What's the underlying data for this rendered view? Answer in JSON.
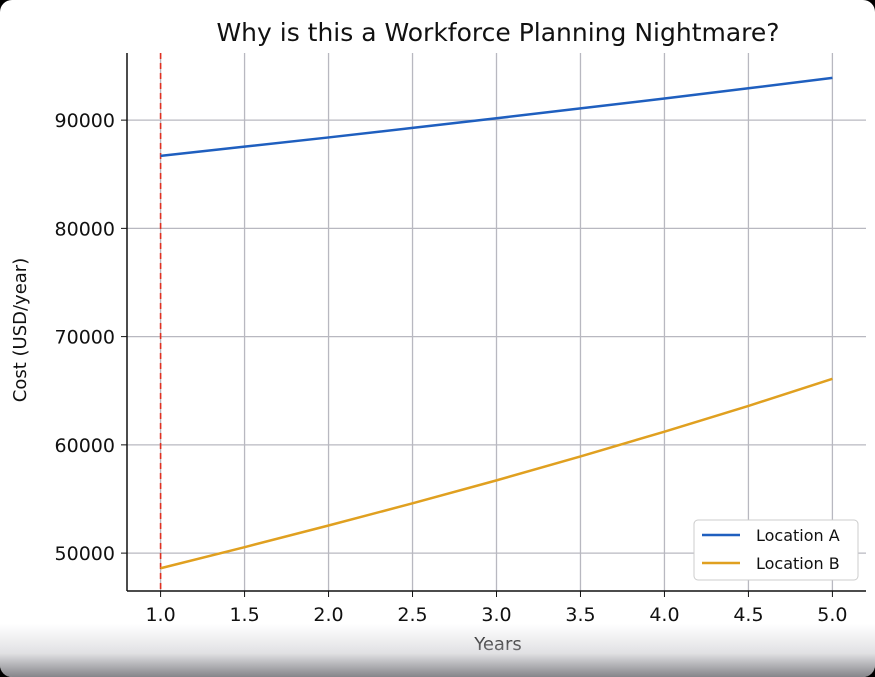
{
  "chart_data": {
    "type": "line",
    "title": "Why is this a Workforce Planning Nightmare?",
    "xlabel": "Years",
    "ylabel": "Cost (USD/year)",
    "xlim": [
      0.8,
      5.2
    ],
    "ylim": [
      46500,
      96200
    ],
    "x": [
      1.0,
      1.5,
      2.0,
      2.5,
      3.0,
      3.5,
      4.0,
      4.5,
      5.0
    ],
    "xticks": [
      "1.0",
      "1.5",
      "2.0",
      "2.5",
      "3.0",
      "3.5",
      "4.0",
      "4.5",
      "5.0"
    ],
    "yticks": [
      "50000",
      "60000",
      "70000",
      "80000",
      "90000"
    ],
    "ytick_values": [
      50000,
      60000,
      70000,
      80000,
      90000
    ],
    "series": [
      {
        "name": "Location A",
        "color": "#1f5fbf",
        "values": [
          86700,
          87550,
          88400,
          89280,
          90170,
          91080,
          92000,
          92940,
          93900
        ]
      },
      {
        "name": "Location B",
        "color": "#e0a020",
        "values": [
          48600,
          50550,
          52550,
          54600,
          56720,
          58930,
          61220,
          63600,
          66100
        ]
      }
    ],
    "vline": {
      "x": 1.0,
      "color": "#e03020",
      "style": "dashed"
    },
    "grid": true,
    "legend_position": "bottom-right"
  }
}
